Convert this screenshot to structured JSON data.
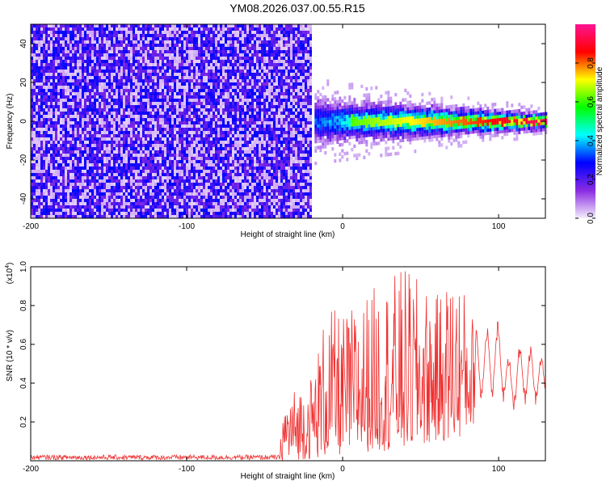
{
  "title": "YM08.2026.037.00.55.R15",
  "chart_data": [
    {
      "type": "heatmap",
      "xlabel": "Height of straight line (km)",
      "ylabel": "Frequency (Hz)",
      "xlim": [
        -200,
        130
      ],
      "ylim": [
        -50,
        50
      ],
      "x_ticks": [
        -200,
        -100,
        0,
        100
      ],
      "x_tick_labels": [
        "-200",
        "-100",
        "0",
        "100"
      ],
      "y_ticks": [
        -40,
        -20,
        0,
        20,
        40
      ],
      "y_tick_labels": [
        "-40",
        "-20",
        "0",
        "20",
        "40"
      ],
      "regions": [
        {
          "name": "noise",
          "x_range": [
            -200,
            -20
          ],
          "freq_range": [
            -50,
            50
          ],
          "amplitude": [
            0.15,
            0.3
          ]
        },
        {
          "name": "none",
          "x_range": [
            -20,
            -18
          ],
          "freq_range": [
            -50,
            50
          ],
          "amplitude": [
            0,
            0
          ]
        },
        {
          "name": "signal",
          "x_range": [
            -18,
            130
          ],
          "center_freq": 0,
          "spread_hz_start": 12,
          "spread_hz_end": 4,
          "peak_amplitude": 0.95
        }
      ],
      "colorbar": {
        "label": "Normalized spectral amplitude",
        "range": [
          0,
          1
        ],
        "ticks": [
          0.0,
          0.2,
          0.4,
          0.6,
          0.8
        ],
        "tick_labels": [
          "0.0",
          "0.2",
          "0.4",
          "0.6",
          "0.8"
        ],
        "colors": [
          "#f4eefc",
          "#8a2be2",
          "#0000ff",
          "#00ffff",
          "#00ff00",
          "#ffff00",
          "#ff0000",
          "#ff1493"
        ]
      },
      "grid": false
    },
    {
      "type": "line",
      "xlabel": "Height of straight line (km)",
      "ylabel": "SNR (10 * v/v)",
      "y_scale_label": "(x10",
      "y_scale_exponent": "4",
      "xlim": [
        -200,
        130
      ],
      "ylim": [
        0,
        1.0
      ],
      "x_ticks": [
        -200,
        -100,
        0,
        100
      ],
      "x_tick_labels": [
        "-200",
        "-100",
        "0",
        "100"
      ],
      "y_ticks": [
        0.2,
        0.4,
        0.6,
        0.8,
        1.0
      ],
      "y_tick_labels": [
        "0.2",
        "0.4",
        "0.6",
        "0.8",
        "1.0"
      ],
      "color": "#f03030",
      "envelope": [
        {
          "x": -200,
          "lo": 0.005,
          "hi": 0.03
        },
        {
          "x": -40,
          "lo": 0.005,
          "hi": 0.03
        },
        {
          "x": -39,
          "lo": 0.0,
          "hi": 0.32
        },
        {
          "x": -20,
          "lo": 0.01,
          "hi": 0.45
        },
        {
          "x": -10,
          "lo": 0.02,
          "hi": 0.8
        },
        {
          "x": 0,
          "lo": 0.03,
          "hi": 0.75
        },
        {
          "x": 20,
          "lo": 0.05,
          "hi": 0.9
        },
        {
          "x": 40,
          "lo": 0.05,
          "hi": 1.0
        },
        {
          "x": 60,
          "lo": 0.1,
          "hi": 0.85
        },
        {
          "x": 73,
          "lo": 0.1,
          "hi": 1.0
        },
        {
          "x": 85,
          "lo": 0.2,
          "hi": 0.72
        },
        {
          "x": 100,
          "lo": 0.3,
          "hi": 0.72
        },
        {
          "x": 107,
          "lo": 0.2,
          "hi": 0.55
        },
        {
          "x": 115,
          "lo": 0.25,
          "hi": 0.62
        },
        {
          "x": 130,
          "lo": 0.25,
          "hi": 0.55
        }
      ],
      "grid": false
    }
  ]
}
